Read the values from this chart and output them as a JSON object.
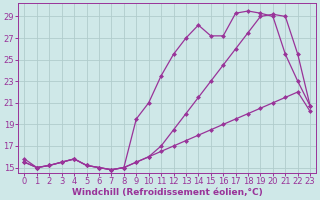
{
  "xlabel": "Windchill (Refroidissement éolien,°C)",
  "bg_color": "#cfe8e8",
  "line_color": "#993399",
  "grid_color": "#b0cccc",
  "xlim": [
    -0.5,
    23.5
  ],
  "ylim": [
    14.5,
    30.2
  ],
  "xticks": [
    0,
    1,
    2,
    3,
    4,
    5,
    6,
    7,
    8,
    9,
    10,
    11,
    12,
    13,
    14,
    15,
    16,
    17,
    18,
    19,
    20,
    21,
    22,
    23
  ],
  "yticks": [
    15,
    17,
    19,
    21,
    23,
    25,
    27,
    29
  ],
  "series1_x": [
    0,
    1,
    2,
    3,
    4,
    5,
    6,
    7,
    8,
    9,
    10,
    11,
    12,
    13,
    14,
    15,
    16,
    17,
    18,
    19,
    20,
    21,
    22,
    23
  ],
  "series1_y": [
    15.8,
    15.0,
    15.2,
    15.5,
    15.8,
    15.2,
    15.0,
    14.8,
    15.0,
    19.5,
    21.0,
    23.5,
    25.5,
    27.0,
    28.2,
    27.2,
    27.2,
    29.3,
    29.5,
    29.3,
    29.0,
    25.5,
    23.0,
    20.7
  ],
  "series2_x": [
    0,
    1,
    2,
    3,
    4,
    5,
    6,
    7,
    8,
    9,
    10,
    11,
    12,
    13,
    14,
    15,
    16,
    17,
    18,
    19,
    20,
    21,
    22,
    23
  ],
  "series2_y": [
    15.5,
    15.0,
    15.2,
    15.5,
    15.8,
    15.2,
    15.0,
    14.8,
    15.0,
    15.5,
    16.0,
    16.5,
    17.0,
    17.5,
    18.0,
    18.5,
    19.0,
    19.5,
    20.0,
    20.5,
    21.0,
    21.5,
    22.0,
    20.2
  ],
  "series3_x": [
    0,
    1,
    2,
    3,
    4,
    5,
    6,
    7,
    8,
    9,
    10,
    11,
    12,
    13,
    14,
    15,
    16,
    17,
    18,
    19,
    20,
    21,
    22,
    23
  ],
  "series3_y": [
    15.5,
    15.0,
    15.2,
    15.5,
    15.8,
    15.2,
    15.0,
    14.8,
    15.0,
    15.5,
    16.0,
    17.0,
    18.5,
    20.0,
    21.5,
    23.0,
    24.5,
    26.0,
    27.5,
    29.0,
    29.2,
    29.0,
    25.5,
    20.7
  ],
  "markersize": 2.5,
  "linewidth": 0.9,
  "xlabel_fontsize": 6.5,
  "tick_fontsize": 6.0
}
